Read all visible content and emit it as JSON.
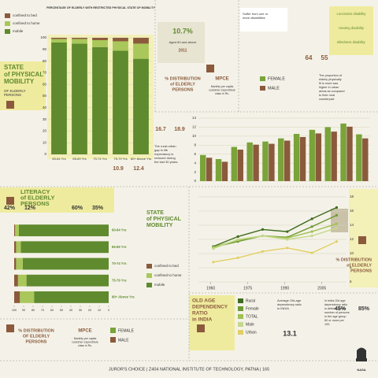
{
  "chart_data": [
    {
      "type": "stacked-bar",
      "title": "PERCENTAGE OF ELDERLY WITH RESTRICTED PHYSICAL STATE OF MOBILITY",
      "categories": [
        "60-64 Yrs",
        "65-69 Yrs",
        "70-74 Yrs",
        "75-79 Yrs",
        "80+ Above Yrs"
      ],
      "series": [
        {
          "name": "confined to bed",
          "color": "#8b5a3c",
          "values": [
            1,
            1,
            2,
            3,
            5
          ]
        },
        {
          "name": "confined to home",
          "color": "#a9c75a",
          "values": [
            3,
            4,
            6,
            8,
            13
          ]
        },
        {
          "name": "mobile",
          "color": "#5f8a2e",
          "values": [
            96,
            95,
            92,
            89,
            82
          ]
        }
      ],
      "ylim": [
        0,
        100
      ],
      "yticks": [
        0,
        10,
        20,
        30,
        40,
        50,
        60,
        70,
        80,
        90,
        100
      ],
      "grid": true
    },
    {
      "type": "bar",
      "categories": [
        null,
        null,
        null,
        null,
        null,
        null,
        null,
        null,
        null,
        null,
        null
      ],
      "series": [
        {
          "name": "FEMALE",
          "color": "#7aa33a",
          "values": [
            5.8,
            4.9,
            7.6,
            8.6,
            8.8,
            9.5,
            10.5,
            11.4,
            12.0,
            12.8,
            10.4
          ]
        },
        {
          "name": "MALE",
          "color": "#8b5a3c",
          "values": [
            5.2,
            4.3,
            7.0,
            8.1,
            8.3,
            9.0,
            9.8,
            10.6,
            11.0,
            12.1,
            9.5
          ]
        }
      ],
      "ylim": [
        0,
        14
      ],
      "yticks": [
        0,
        2,
        4,
        6,
        8,
        10,
        12,
        14
      ],
      "grid": true
    },
    {
      "type": "line",
      "x": [
        1961,
        1971,
        1981,
        1991,
        2001,
        2011
      ],
      "series": [
        {
          "name": "Rural",
          "color": "#3e6b1f",
          "values": [
            11.0,
            12.4,
            13.4,
            13.1,
            14.9,
            16.5
          ]
        },
        {
          "name": "Female",
          "color": "#6f9a34",
          "values": [
            10.9,
            11.7,
            12.5,
            12.3,
            13.8,
            15.4
          ]
        },
        {
          "name": "TOTAL",
          "color": "#9fc052",
          "values": [
            10.9,
            11.9,
            12.5,
            12.2,
            13.1,
            14.2
          ]
        },
        {
          "name": "Male",
          "color": "#c4d88a",
          "values": [
            10.7,
            12.0,
            12.5,
            12.0,
            12.5,
            13.6
          ]
        },
        {
          "name": "Urban",
          "color": "#e2cf63",
          "values": [
            8.8,
            9.4,
            10.3,
            10.8,
            10.1,
            11.7
          ]
        }
      ],
      "xlim": [
        1955,
        2015
      ],
      "xticks": [
        1960,
        1975,
        1990,
        2005
      ],
      "ylim": [
        6,
        18
      ],
      "yticks": [
        6,
        8,
        10,
        12,
        14,
        16,
        18
      ],
      "grid": true
    },
    {
      "type": "hstacked-bar",
      "categories": [
        "60-64 Yrs",
        "65-69 Yrs",
        "70-74 Yrs",
        "75-79 Yrs",
        "80+ Above Yrs"
      ],
      "series": [
        {
          "name": "confined to bed",
          "color": "#8b5a3c",
          "values": [
            1,
            2,
            2,
            4,
            6
          ]
        },
        {
          "name": "confined to home",
          "color": "#a9c75a",
          "values": [
            4,
            5,
            7,
            9,
            15
          ]
        },
        {
          "name": "mobile",
          "color": "#5f8a2e",
          "values": [
            95,
            93,
            91,
            87,
            79
          ]
        }
      ],
      "xlim": [
        100,
        0
      ],
      "xticks": [
        100,
        90,
        80,
        70,
        60,
        50,
        40,
        30,
        20,
        10,
        0
      ]
    }
  ],
  "texts": {
    "mobility_title": [
      "STATE",
      "of PHYSICAL",
      "MOBILITY"
    ],
    "mobility_sub": [
      "OF ELDERLY",
      "PERSONS"
    ],
    "aged_value": "10.7%",
    "aged_label": "Aged 60 and above",
    "aged_year": "2011",
    "dist_title": [
      "% DISTRIBUTION",
      "of ELDERLY",
      "PERSONS"
    ],
    "mpce": "MPCE",
    "mpce_note": [
      "Monthly per capita",
      "customer expenditure",
      "class in Rs."
    ],
    "disability_title": [
      "Suffer from one or",
      "more disabilities"
    ],
    "disabilities": [
      "Locomotor disability",
      "Hearing disability",
      "Blindness disability"
    ],
    "disability_values": [
      "64",
      "55"
    ],
    "fit_note": [
      "The proportion of",
      "elderly physically",
      "fit is more was",
      "higher in urban",
      "areas as compared",
      "to their rural",
      "counterpart."
    ],
    "life_values": [
      "16.7",
      "18.9",
      "10.9",
      "12.4"
    ],
    "gap_note": [
      "The rural-urban",
      "gap in life",
      "expectancy is",
      "reduced during",
      "the last 30 years."
    ],
    "literacy_title": [
      "LITERACY",
      "of ELDERLY",
      "PERSONS"
    ],
    "literacy_values": [
      "42%",
      "12%",
      "60%",
      "35%"
    ],
    "mobility_title_2": [
      "STATE",
      "of PHYSICAL",
      "MOBILITY"
    ],
    "right_dist": [
      "% DISTRIBUTION",
      "of ELDERLY",
      "PERSONS"
    ],
    "right_values": [
      "45%",
      "85%"
    ],
    "oadr_title": [
      "OLD AGE",
      "DEPENDENCY",
      "RATIO",
      "in INDIA"
    ],
    "avg_note": [
      "Average Old-age",
      "dependency ratio",
      "in INDIA"
    ],
    "avg_value": "13.1",
    "ratio_note": [
      "in India Old age",
      "dependency ratio",
      "is defined as the",
      "number of persons",
      "in the age group",
      "60 or more per",
      "100."
    ],
    "bottom_dist": [
      "% DISTRIBUTION",
      "OF ELDERLY",
      "PERSONS"
    ],
    "bottom_mpce": "MPCE",
    "bottom_mpce_note": [
      "Monthly per capita",
      "customer expenditure",
      "class in Rs."
    ],
    "bottom_female": "FEMALE",
    "bottom_male": "MALE",
    "footer": "JUROR'S CHOICE | Z404 NATIONAL INSTITUTE OF TECHNOLOGY, PATNA | 165",
    "logo": "NASA"
  }
}
